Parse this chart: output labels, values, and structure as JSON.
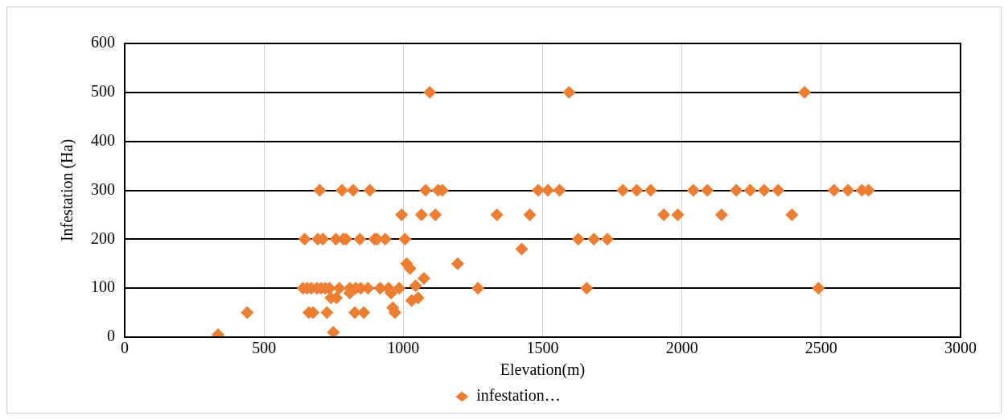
{
  "chart_data": {
    "type": "scatter",
    "xlabel": "Elevation(m)",
    "ylabel": "Infestation (Ha)",
    "xlim": [
      0,
      3000
    ],
    "xticks": [
      0,
      500,
      1000,
      1500,
      2000,
      2500,
      3000
    ],
    "ylim": [
      0,
      600
    ],
    "yticks": [
      0,
      100,
      200,
      300,
      400,
      500,
      600
    ],
    "grid": true,
    "legend": "bottom",
    "marker": "diamond",
    "series": [
      {
        "name": "infestation…",
        "color": "#ed7d31",
        "x": [
          335,
          440,
          749,
          740,
          760,
          808,
          661,
          676,
          726,
          826,
          858,
          962,
          970,
          956,
          1030,
          1053,
          640,
          655,
          670,
          690,
          705,
          720,
          735,
          770,
          808,
          829,
          847,
          873,
          917,
          947,
          985,
          1044,
          1268,
          1658,
          2490,
          1074,
          1012,
          1024,
          1195,
          1425,
          646,
          693,
          711,
          758,
          785,
          794,
          844,
          897,
          906,
          935,
          1006,
          1628,
          1684,
          1732,
          994,
          1065,
          1115,
          1336,
          1454,
          1935,
          1985,
          2142,
          2395,
          700,
          780,
          820,
          880,
          1080,
          1125,
          1140,
          1484,
          1519,
          1561,
          1788,
          1838,
          1888,
          2041,
          2091,
          2195,
          2245,
          2295,
          2345,
          2546,
          2596,
          2646,
          2670,
          1095,
          1595,
          2440
        ],
        "values": [
          5,
          50,
          10,
          80,
          80,
          90,
          50,
          50,
          50,
          50,
          50,
          60,
          50,
          90,
          75,
          80,
          100,
          100,
          100,
          100,
          100,
          100,
          100,
          100,
          100,
          100,
          100,
          100,
          100,
          100,
          100,
          105,
          100,
          100,
          100,
          120,
          150,
          140,
          150,
          180,
          200,
          200,
          200,
          200,
          200,
          200,
          200,
          200,
          200,
          200,
          200,
          200,
          200,
          200,
          250,
          250,
          250,
          250,
          250,
          250,
          250,
          250,
          250,
          300,
          300,
          300,
          300,
          300,
          300,
          300,
          300,
          300,
          300,
          300,
          300,
          300,
          300,
          300,
          300,
          300,
          300,
          300,
          300,
          300,
          300,
          300,
          500,
          500,
          500
        ]
      }
    ]
  }
}
